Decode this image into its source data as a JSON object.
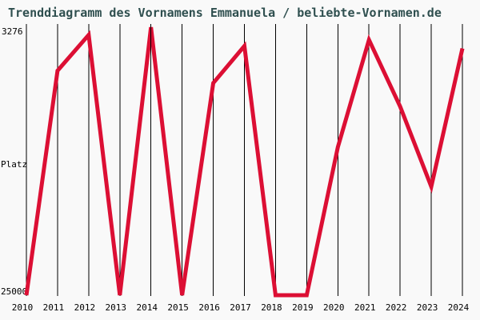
{
  "title": "Trenddiagramm des Vornamens Emmanuela / beliebte-Vornamen.de",
  "colors": {
    "background": "#f9f9f9",
    "title_text": "#2f4f4f",
    "line": "#dc0f34",
    "grid": "#000000",
    "axis_text": "#000000"
  },
  "y_axis": {
    "top_label": "3276",
    "axis_title": "Platz",
    "bottom_label": "25000"
  },
  "chart_data": {
    "type": "line",
    "title": "Trenddiagramm des Vornamens Emmanuela / beliebte-Vornamen.de",
    "x": [
      2010,
      2011,
      2012,
      2013,
      2014,
      2015,
      2016,
      2017,
      2018,
      2019,
      2020,
      2021,
      2022,
      2023,
      2024
    ],
    "series": [
      {
        "name": "Emmanuela",
        "values": [
          25000,
          6800,
          3900,
          25000,
          3276,
          25000,
          7800,
          4800,
          25000,
          25000,
          13000,
          4300,
          9700,
          16200,
          5000
        ]
      }
    ],
    "xlabel": "",
    "ylabel": "Platz",
    "ylim": [
      3276,
      25000
    ],
    "y_inverted": true,
    "y_tick_labels": [
      "3276",
      "25000"
    ],
    "grid": "vertical-only",
    "legend": "none"
  }
}
